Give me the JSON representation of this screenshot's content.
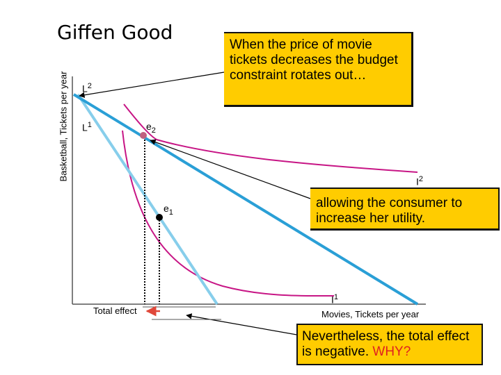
{
  "title": "Giffen Good",
  "y_axis_label": "Basketball, Tickets per year",
  "x_axis_label": "Movies, Tickets per year",
  "budget_lines": {
    "L1": {
      "letter": "L",
      "index": "1"
    },
    "L2": {
      "letter": "L",
      "index": "2"
    }
  },
  "indifference_curves": {
    "I1": {
      "letter": "I",
      "index": "1"
    },
    "I2": {
      "letter": "I",
      "index": "2"
    }
  },
  "equilibria": {
    "e1": {
      "letter": "e",
      "index": "1"
    },
    "e2": {
      "letter": "e",
      "index": "2"
    }
  },
  "total_effect_label": "Total effect",
  "callouts": {
    "top": "When the price of movie tickets decreases the budget constraint rotates out…",
    "middle": "allowing the consumer to increase her utility.",
    "bottom_text": "Nevertheless, the total effect is negative.",
    "bottom_emphasis": "WHY?"
  },
  "colors": {
    "budget_line_L1": "#87ceeb",
    "budget_line_L2": "#2a9fd6",
    "indifference_curve": "#c71585",
    "equilibrium_point": "#000000",
    "total_effect_arrow": "#e0483a",
    "callout_fill": "#ffcc00",
    "emphasis": "#e02020"
  }
}
